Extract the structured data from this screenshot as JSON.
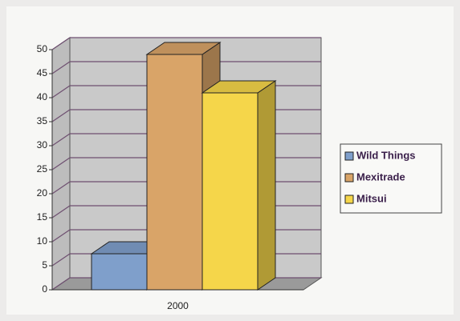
{
  "chart_data": {
    "type": "bar",
    "categories": [
      "2000"
    ],
    "series": [
      {
        "name": "Wild Things",
        "color": "#7f9fcb",
        "values": [
          7.5
        ]
      },
      {
        "name": "Mexitrade",
        "color": "#d9a468",
        "values": [
          49
        ]
      },
      {
        "name": "Mitsui",
        "color": "#f5d64a",
        "values": [
          41
        ]
      }
    ],
    "ylim": [
      0,
      50
    ],
    "yticks": [
      0,
      5,
      10,
      15,
      20,
      25,
      30,
      35,
      40,
      45,
      50
    ],
    "grid": true,
    "legend": "right"
  }
}
